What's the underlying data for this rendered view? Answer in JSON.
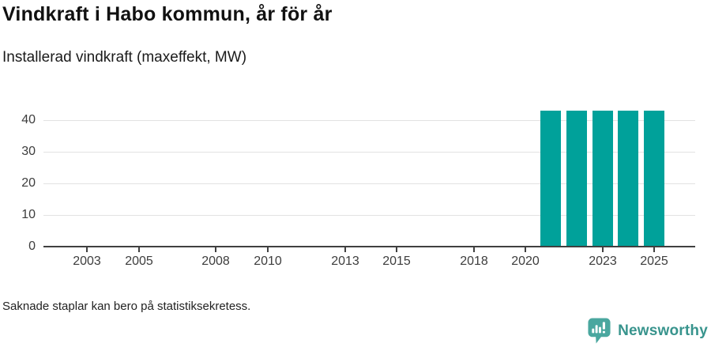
{
  "chart_data": {
    "type": "bar",
    "title": "Vindkraft i Habo kommun, år för år",
    "subtitle": "Installerad vindkraft (maxeffekt, MW)",
    "xlabel": "",
    "ylabel": "",
    "x": [
      2021,
      2022,
      2023,
      2024,
      2025
    ],
    "values": [
      42.9,
      42.9,
      42.9,
      42.9,
      42.9
    ],
    "series_name": "Installerad vindkraft (MW)",
    "xticks": [
      2003,
      2005,
      2008,
      2010,
      2013,
      2015,
      2018,
      2020,
      2023,
      2025
    ],
    "yticks": [
      0,
      10,
      20,
      30,
      40
    ],
    "xlim": [
      2001.3,
      2026.6
    ],
    "ylim": [
      0,
      46
    ],
    "grid": "horizontal-only",
    "legend": "none",
    "note": "Saknade staplar kan bero på statistiksekretess."
  },
  "brand": {
    "name": "Newsworthy"
  },
  "colors": {
    "bar": "#00a19a",
    "grid": "#e2e2e2",
    "axis": "#404040",
    "tick_text": "#3d3d3d",
    "title_text": "#111111",
    "brand_icon": "#4aa79f",
    "brand_text": "#38948d"
  }
}
